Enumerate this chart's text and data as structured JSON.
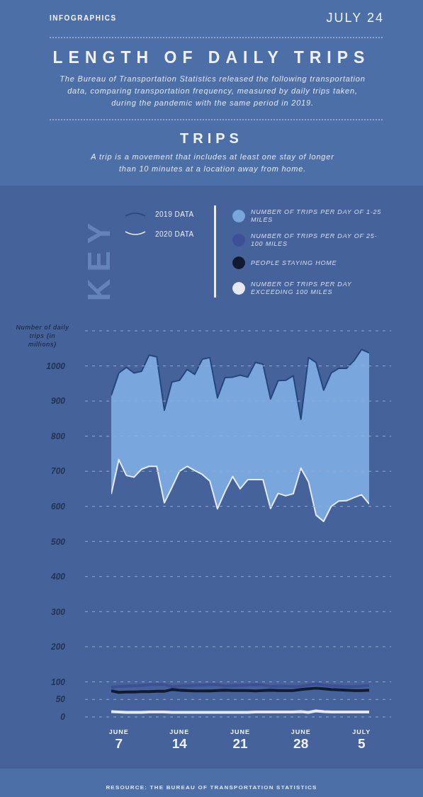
{
  "chart_data": {
    "type": "line",
    "title": "LENGTH OF DAILY TRIPS",
    "subtitle": "The Bureau of Transportation Statistics released the following transportation data, comparing transportation frequency, measured by daily trips taken, during the pandemic with the same period in 2019.",
    "annotations": [
      "INFOGRAPHICS",
      "JULY 24",
      "TRIPS",
      "A trip is a movement that includes at least one stay of longer than 10 minutes at a location away from home.",
      "KEY",
      "RESOURCE: THE BUREAU OF TRANSPORTATION STATISTICS",
      "Number of daily trips (in millions)",
      "2019 DATA",
      "2020 DATA"
    ],
    "categories": [
      null,
      "JUNE 7",
      null,
      null,
      null,
      null,
      null,
      null,
      null,
      "JUNE 14",
      null,
      null,
      null,
      null,
      null,
      null,
      null,
      "JUNE 21",
      null,
      null,
      null,
      null,
      null,
      null,
      null,
      "JUNE 28",
      null,
      null,
      null,
      null,
      null,
      null,
      null,
      "JULY 5",
      null
    ],
    "ylim": [
      0,
      1100
    ],
    "yticks": [
      0,
      50,
      100,
      200,
      300,
      400,
      500,
      600,
      700,
      800,
      900,
      1000,
      {
        "value": 1100,
        "label": null
      }
    ],
    "grid": "y",
    "legend": "top",
    "series": [
      {
        "name": "NUMBER OF TRIPS PER DAY OF 1-25 MILES",
        "type": "area",
        "color": "#78a6dd",
        "values": [
          916,
          980,
          996,
          980,
          985,
          1031,
          1026,
          874,
          954,
          959,
          990,
          976,
          1019,
          1024,
          909,
          967,
          968,
          974,
          968,
          1010,
          1005,
          906,
          958,
          959,
          972,
          848,
          1024,
          1010,
          931,
          980,
          993,
          993,
          1015,
          1047,
          1037
        ]
      },
      {
        "type": "area",
        "color": "#e6ecf5",
        "values": [
          635,
          733,
          688,
          683,
          706,
          714,
          714,
          610,
          654,
          700,
          714,
          702,
          691,
          672,
          593,
          642,
          685,
          650,
          676,
          676,
          676,
          594,
          637,
          630,
          636,
          709,
          670,
          575,
          557,
          600,
          615,
          616,
          625,
          633,
          607
        ]
      },
      {
        "name": "NUMBER OF TRIPS PER DAY OF 25-100 MILES",
        "color": "#3d4f96",
        "values": [
          84,
          87,
          88,
          89,
          90,
          92,
          93,
          92,
          86,
          88,
          89,
          90,
          91,
          92,
          92,
          88,
          89,
          90,
          91,
          92,
          91,
          87,
          88,
          88,
          87,
          88,
          91,
          94,
          91,
          89,
          88,
          87,
          87,
          88,
          90
        ]
      },
      {
        "name": "PEOPLE STAYING HOME",
        "color": "#121a30",
        "values": [
          74,
          70,
          71,
          71,
          72,
          72,
          73,
          73,
          78,
          76,
          75,
          74,
          74,
          74,
          75,
          76,
          75,
          75,
          75,
          74,
          75,
          76,
          75,
          75,
          75,
          78,
          80,
          82,
          80,
          78,
          77,
          76,
          75,
          75,
          76
        ]
      },
      {
        "name": "NUMBER OF TRIPS PER DAY EXCEEDING 100 MILES",
        "color": "#e8e8f0",
        "values": [
          15,
          14,
          13,
          13,
          13,
          14,
          14,
          14,
          13,
          13,
          13,
          13,
          13,
          13,
          13,
          13,
          13,
          13,
          13,
          14,
          14,
          14,
          14,
          14,
          14,
          15,
          13,
          17,
          15,
          14,
          14,
          14,
          14,
          14,
          14
        ]
      }
    ]
  }
}
